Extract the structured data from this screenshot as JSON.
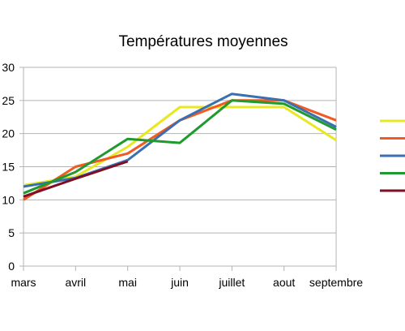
{
  "chart_data": {
    "type": "line",
    "title": "Températures moyennes",
    "xlabel": "",
    "ylabel": "",
    "categories": [
      "mars",
      "avril",
      "mai",
      "juin",
      "juillet",
      "aout",
      "septembre"
    ],
    "ylim": [
      0,
      30
    ],
    "yticks": [
      0,
      5,
      10,
      15,
      20,
      25,
      30
    ],
    "grid": true,
    "legend_position": "right",
    "series": [
      {
        "color": "#e8e820",
        "values": [
          12.2,
          13.5,
          18,
          24,
          24,
          24,
          19
        ]
      },
      {
        "color": "#f25a24",
        "values": [
          10,
          15,
          17,
          22,
          25,
          25,
          22
        ]
      },
      {
        "color": "#3a6fb0",
        "values": [
          12,
          13.3,
          16,
          22,
          26,
          25,
          21
        ]
      },
      {
        "color": "#1e9a2e",
        "values": [
          11,
          14.2,
          19.2,
          18.6,
          25,
          24.5,
          20.6
        ]
      },
      {
        "color": "#7f0f24",
        "values": [
          10.5,
          13.2,
          15.8,
          null,
          null,
          null,
          null
        ]
      }
    ]
  }
}
